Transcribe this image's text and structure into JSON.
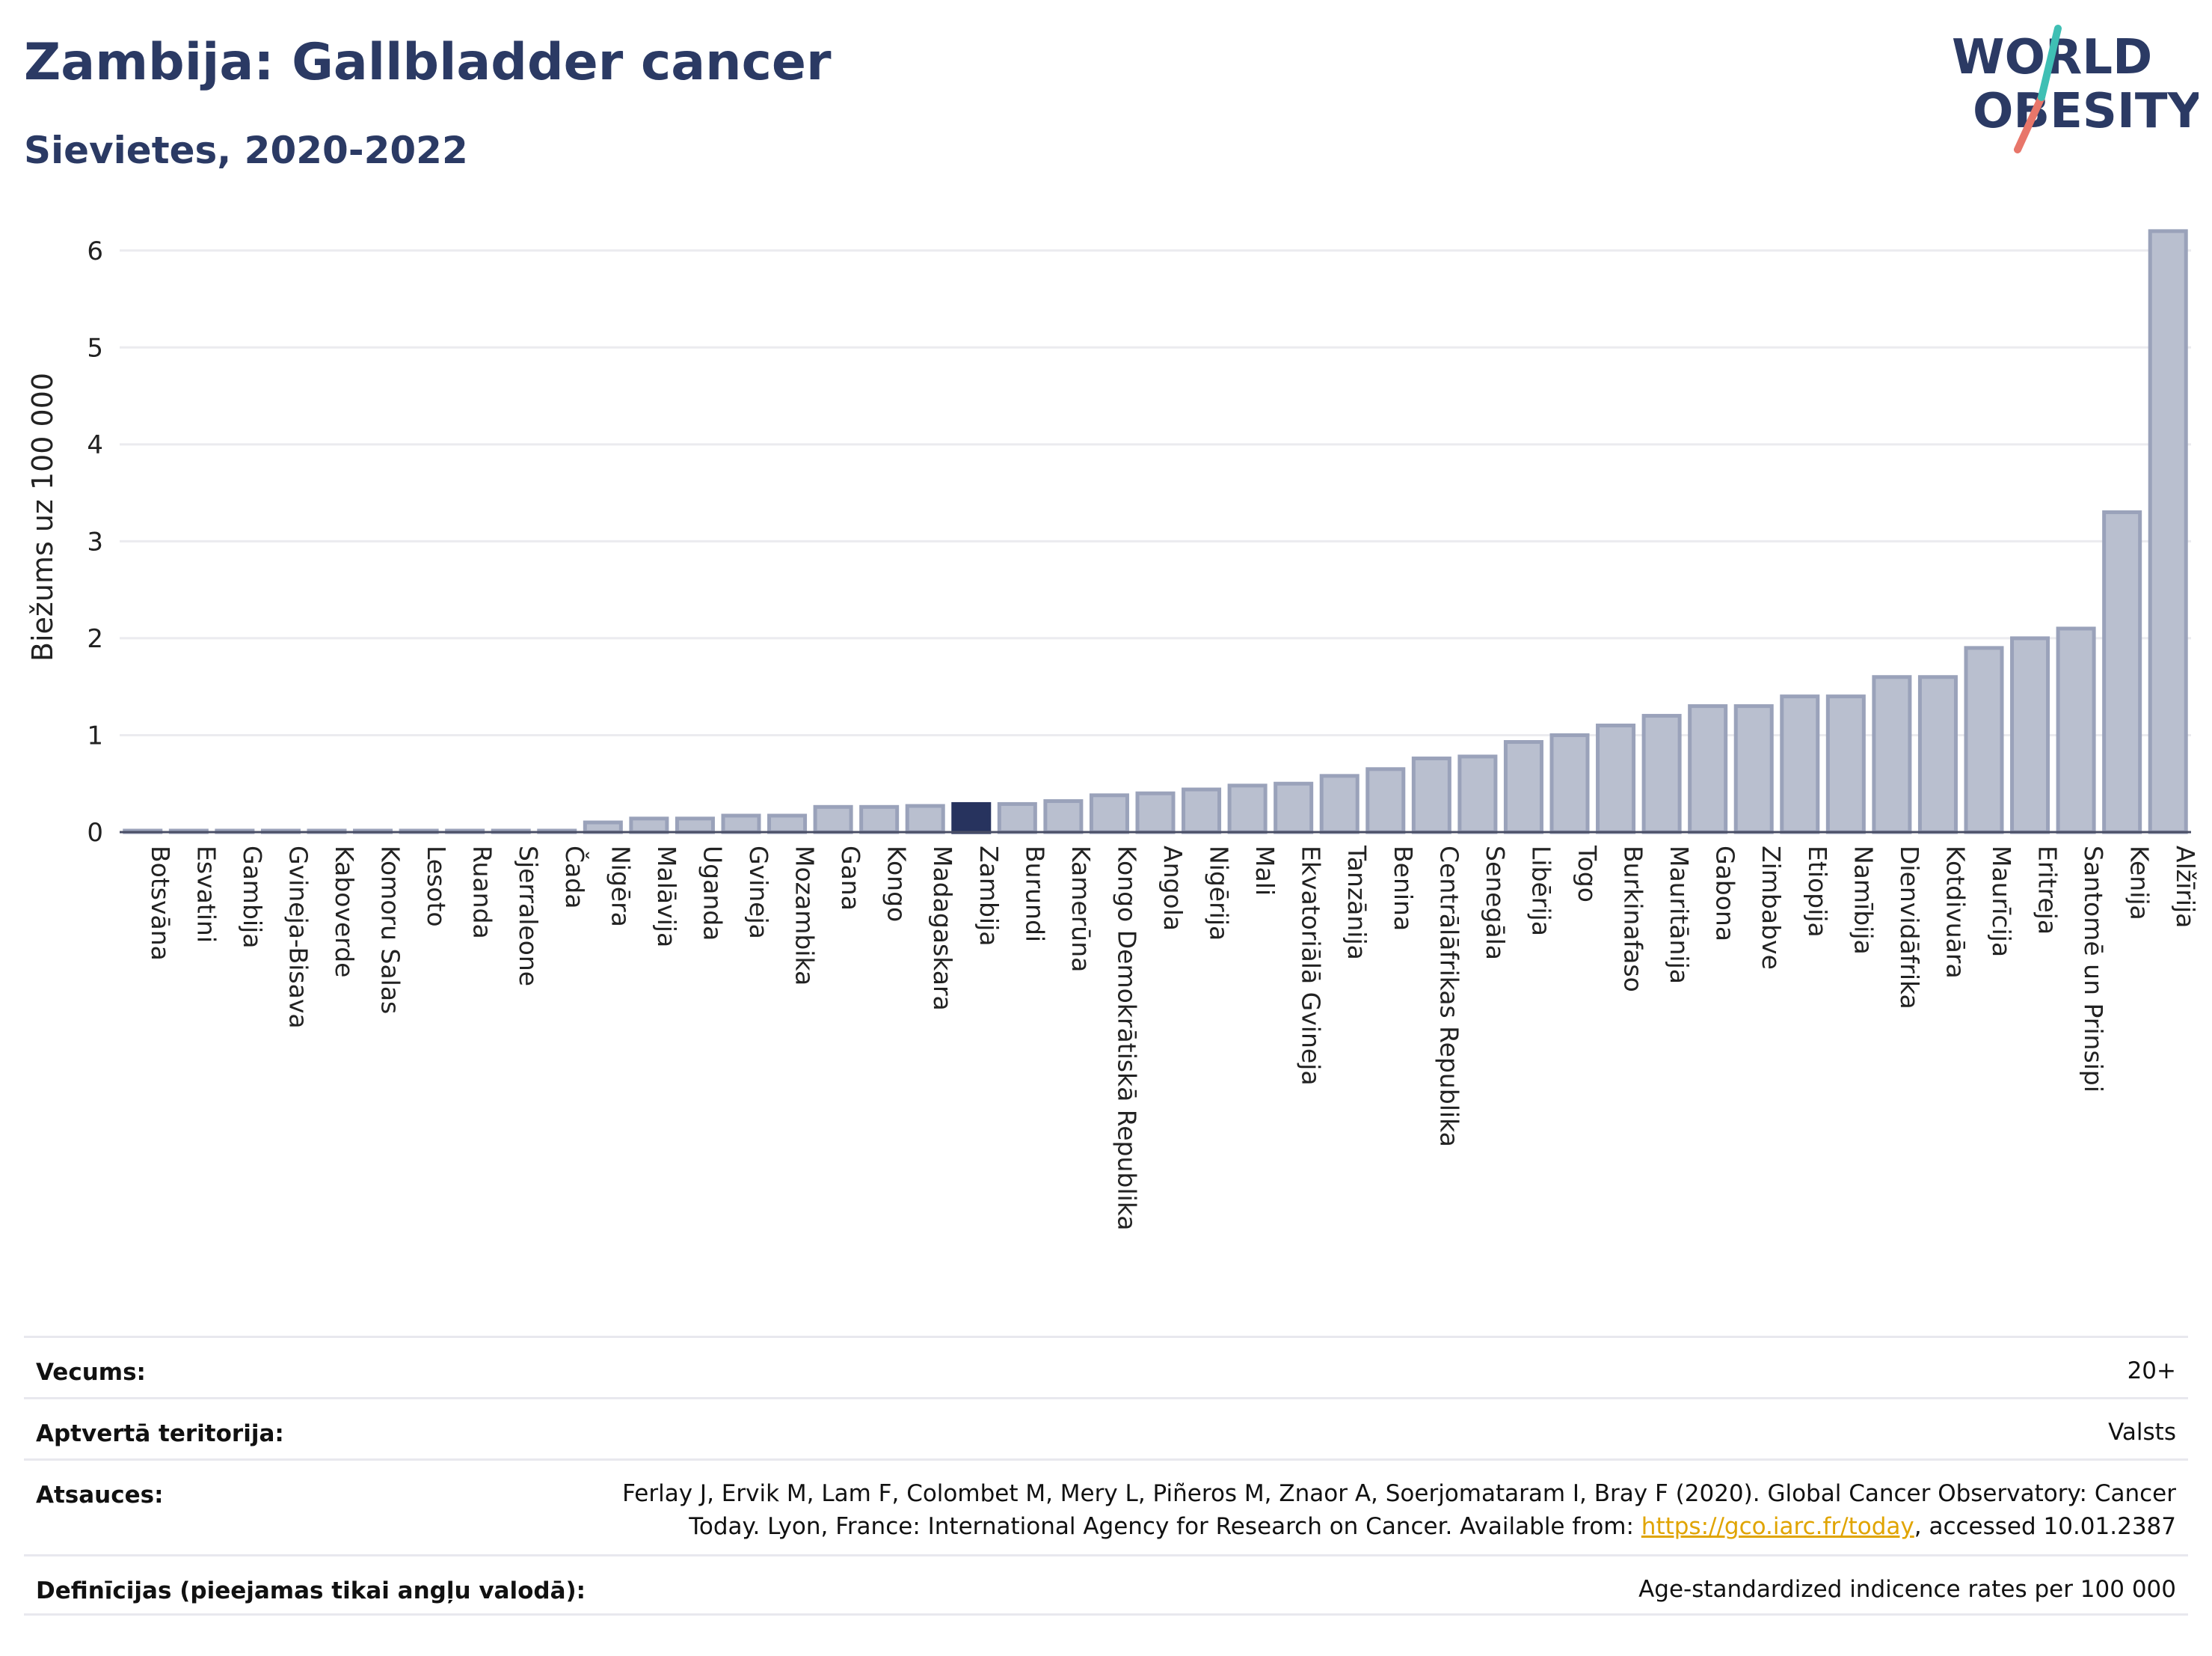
{
  "header": {
    "title": "Zambija: Gallbladder cancer",
    "subtitle": "Sievietes, 2020-2022",
    "logo_top": "WORLD",
    "logo_bottom": "OBESITY"
  },
  "colors": {
    "bar": "#b9bfcf",
    "bar_border": "#9aa2ba",
    "highlight": "#27335e",
    "title": "#2b3a64",
    "logo_teal": "#3fbfb4",
    "logo_coral": "#e8766a"
  },
  "chart_data": {
    "type": "bar",
    "ylabel": "Biežums uz 100 000",
    "ylim": [
      0,
      6.5
    ],
    "yticks": [
      0,
      1,
      2,
      3,
      4,
      5,
      6
    ],
    "highlight": "Zambija",
    "categories": [
      "Botsvāna",
      "Esvatini",
      "Gambija",
      "Gvineja-Bisava",
      "Kaboverde",
      "Komoru Salas",
      "Lesoto",
      "Ruanda",
      "Sjerraleone",
      "Čada",
      "Nigēra",
      "Malāvija",
      "Uganda",
      "Gvineja",
      "Mozambika",
      "Gana",
      "Kongo",
      "Madagaskara",
      "Zambija",
      "Burundi",
      "Kamerūna",
      "Kongo Demokrātiskā Republika",
      "Angola",
      "Nigērija",
      "Mali",
      "Ekvatoriālā Gvineja",
      "Tanzānija",
      "Benina",
      "Centrālāfrikas Republika",
      "Senegāla",
      "Libērija",
      "Togo",
      "Burkinafaso",
      "Mauritānija",
      "Gabona",
      "Zimbabve",
      "Etiopija",
      "Namībija",
      "Dienvidāfrika",
      "Kotdivuāra",
      "Maurīcija",
      "Eritreja",
      "Santomē un Prinsipi",
      "Kenija",
      "Alžīrija"
    ],
    "values": [
      0.01,
      0.01,
      0.01,
      0.01,
      0.01,
      0.01,
      0.01,
      0.01,
      0.01,
      0.01,
      0.1,
      0.14,
      0.14,
      0.17,
      0.17,
      0.26,
      0.26,
      0.27,
      0.29,
      0.29,
      0.32,
      0.38,
      0.4,
      0.44,
      0.48,
      0.5,
      0.58,
      0.65,
      0.76,
      0.78,
      0.93,
      1.0,
      1.1,
      1.2,
      1.3,
      1.3,
      1.4,
      1.4,
      1.6,
      1.6,
      1.9,
      2.0,
      2.1,
      3.3,
      6.2
    ]
  },
  "table": {
    "age_label": "Vecums:",
    "age_value": "20+",
    "coverage_label": "Aptvertā teritorija:",
    "coverage_value": "Valsts",
    "refs_label": "Atsauces:",
    "refs_line1": "Ferlay J, Ervik M, Lam F, Colombet M, Mery L, Piñeros M, Znaor A, Soerjomataram I, Bray F (2020). Global Cancer Observatory: Cancer",
    "refs_line2_pre": "Today. Lyon, France: International Agency for Research on Cancer. Available from: ",
    "refs_link": "https://gco.iarc.fr/today",
    "refs_line2_post": ", accessed 10.01.2387",
    "defs_label": "Definīcijas (pieejamas tikai angļu valodā):",
    "defs_value": "Age-standardized indicence rates per 100 000"
  }
}
